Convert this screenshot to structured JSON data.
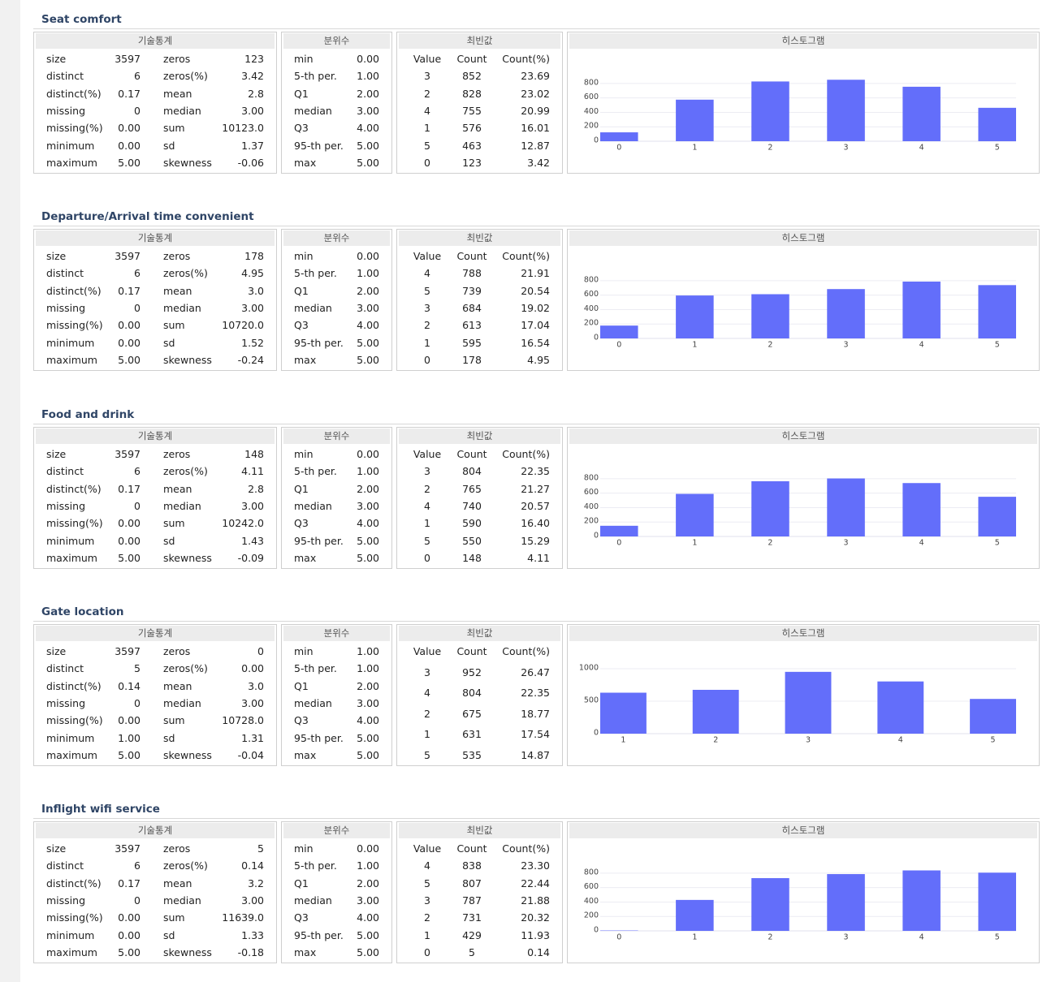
{
  "sections": [
    {
      "title": "Seat comfort",
      "stats": {
        "header": "기술통계",
        "rows": [
          [
            "size",
            "3597",
            "zeros",
            "123"
          ],
          [
            "distinct",
            "6",
            "zeros(%)",
            "3.42"
          ],
          [
            "distinct(%)",
            "0.17",
            "mean",
            "2.8"
          ],
          [
            "missing",
            "0",
            "median",
            "3.00"
          ],
          [
            "missing(%)",
            "0.00",
            "sum",
            "10123.0"
          ],
          [
            "minimum",
            "0.00",
            "sd",
            "1.37"
          ],
          [
            "maximum",
            "5.00",
            "skewness",
            "-0.06"
          ]
        ]
      },
      "quantiles": {
        "header": "분위수",
        "rows": [
          [
            "min",
            "0.00"
          ],
          [
            "5-th per.",
            "1.00"
          ],
          [
            "Q1",
            "2.00"
          ],
          [
            "median",
            "3.00"
          ],
          [
            "Q3",
            "4.00"
          ],
          [
            "95-th per.",
            "5.00"
          ],
          [
            "max",
            "5.00"
          ]
        ]
      },
      "mode": {
        "header": "최빈값",
        "rows": [
          [
            "Value",
            "Count",
            "Count(%)"
          ],
          [
            "3",
            "852",
            "23.69"
          ],
          [
            "2",
            "828",
            "23.02"
          ],
          [
            "4",
            "755",
            "20.99"
          ],
          [
            "1",
            "576",
            "16.01"
          ],
          [
            "5",
            "463",
            "12.87"
          ],
          [
            "0",
            "123",
            "3.42"
          ]
        ]
      },
      "histogram": {
        "title": "히스토그램",
        "chart_data": {
          "type": "bar",
          "categories": [
            "0",
            "1",
            "2",
            "3",
            "4",
            "5"
          ],
          "values": [
            123,
            576,
            828,
            852,
            755,
            463
          ],
          "color": "#636efa",
          "ylim": [
            0,
            900
          ],
          "yticks": [
            0,
            200,
            400,
            600,
            800
          ],
          "grid": true
        }
      }
    },
    {
      "title": "Departure/Arrival time convenient",
      "stats": {
        "header": "기술통계",
        "rows": [
          [
            "size",
            "3597",
            "zeros",
            "178"
          ],
          [
            "distinct",
            "6",
            "zeros(%)",
            "4.95"
          ],
          [
            "distinct(%)",
            "0.17",
            "mean",
            "3.0"
          ],
          [
            "missing",
            "0",
            "median",
            "3.00"
          ],
          [
            "missing(%)",
            "0.00",
            "sum",
            "10720.0"
          ],
          [
            "minimum",
            "0.00",
            "sd",
            "1.52"
          ],
          [
            "maximum",
            "5.00",
            "skewness",
            "-0.24"
          ]
        ]
      },
      "quantiles": {
        "header": "분위수",
        "rows": [
          [
            "min",
            "0.00"
          ],
          [
            "5-th per.",
            "1.00"
          ],
          [
            "Q1",
            "2.00"
          ],
          [
            "median",
            "3.00"
          ],
          [
            "Q3",
            "4.00"
          ],
          [
            "95-th per.",
            "5.00"
          ],
          [
            "max",
            "5.00"
          ]
        ]
      },
      "mode": {
        "header": "최빈값",
        "rows": [
          [
            "Value",
            "Count",
            "Count(%)"
          ],
          [
            "4",
            "788",
            "21.91"
          ],
          [
            "5",
            "739",
            "20.54"
          ],
          [
            "3",
            "684",
            "19.02"
          ],
          [
            "2",
            "613",
            "17.04"
          ],
          [
            "1",
            "595",
            "16.54"
          ],
          [
            "0",
            "178",
            "4.95"
          ]
        ]
      },
      "histogram": {
        "title": "히스토그램",
        "chart_data": {
          "type": "bar",
          "categories": [
            "0",
            "1",
            "2",
            "3",
            "4",
            "5"
          ],
          "values": [
            178,
            595,
            613,
            684,
            788,
            739
          ],
          "color": "#636efa",
          "ylim": [
            0,
            900
          ],
          "yticks": [
            0,
            200,
            400,
            600,
            800
          ],
          "grid": true
        }
      }
    },
    {
      "title": "Food and drink",
      "stats": {
        "header": "기술통계",
        "rows": [
          [
            "size",
            "3597",
            "zeros",
            "148"
          ],
          [
            "distinct",
            "6",
            "zeros(%)",
            "4.11"
          ],
          [
            "distinct(%)",
            "0.17",
            "mean",
            "2.8"
          ],
          [
            "missing",
            "0",
            "median",
            "3.00"
          ],
          [
            "missing(%)",
            "0.00",
            "sum",
            "10242.0"
          ],
          [
            "minimum",
            "0.00",
            "sd",
            "1.43"
          ],
          [
            "maximum",
            "5.00",
            "skewness",
            "-0.09"
          ]
        ]
      },
      "quantiles": {
        "header": "분위수",
        "rows": [
          [
            "min",
            "0.00"
          ],
          [
            "5-th per.",
            "1.00"
          ],
          [
            "Q1",
            "2.00"
          ],
          [
            "median",
            "3.00"
          ],
          [
            "Q3",
            "4.00"
          ],
          [
            "95-th per.",
            "5.00"
          ],
          [
            "max",
            "5.00"
          ]
        ]
      },
      "mode": {
        "header": "최빈값",
        "rows": [
          [
            "Value",
            "Count",
            "Count(%)"
          ],
          [
            "3",
            "804",
            "22.35"
          ],
          [
            "2",
            "765",
            "21.27"
          ],
          [
            "4",
            "740",
            "20.57"
          ],
          [
            "1",
            "590",
            "16.40"
          ],
          [
            "5",
            "550",
            "15.29"
          ],
          [
            "0",
            "148",
            "4.11"
          ]
        ]
      },
      "histogram": {
        "title": "히스토그램",
        "chart_data": {
          "type": "bar",
          "categories": [
            "0",
            "1",
            "2",
            "3",
            "4",
            "5"
          ],
          "values": [
            148,
            590,
            765,
            804,
            740,
            550
          ],
          "color": "#636efa",
          "ylim": [
            0,
            900
          ],
          "yticks": [
            0,
            200,
            400,
            600,
            800
          ],
          "grid": true
        }
      }
    },
    {
      "title": "Gate location",
      "stats": {
        "header": "기술통계",
        "rows": [
          [
            "size",
            "3597",
            "zeros",
            "0"
          ],
          [
            "distinct",
            "5",
            "zeros(%)",
            "0.00"
          ],
          [
            "distinct(%)",
            "0.14",
            "mean",
            "3.0"
          ],
          [
            "missing",
            "0",
            "median",
            "3.00"
          ],
          [
            "missing(%)",
            "0.00",
            "sum",
            "10728.0"
          ],
          [
            "minimum",
            "1.00",
            "sd",
            "1.31"
          ],
          [
            "maximum",
            "5.00",
            "skewness",
            "-0.04"
          ]
        ]
      },
      "quantiles": {
        "header": "분위수",
        "rows": [
          [
            "min",
            "1.00"
          ],
          [
            "5-th per.",
            "1.00"
          ],
          [
            "Q1",
            "2.00"
          ],
          [
            "median",
            "3.00"
          ],
          [
            "Q3",
            "4.00"
          ],
          [
            "95-th per.",
            "5.00"
          ],
          [
            "max",
            "5.00"
          ]
        ]
      },
      "mode": {
        "header": "최빈값",
        "rows": [
          [
            "Value",
            "Count",
            "Count(%)"
          ],
          [
            "3",
            "952",
            "26.47"
          ],
          [
            "4",
            "804",
            "22.35"
          ],
          [
            "2",
            "675",
            "18.77"
          ],
          [
            "1",
            "631",
            "17.54"
          ],
          [
            "5",
            "535",
            "14.87"
          ]
        ]
      },
      "histogram": {
        "title": "히스토그램",
        "chart_data": {
          "type": "bar",
          "categories": [
            "1",
            "2",
            "3",
            "4",
            "5"
          ],
          "values": [
            631,
            675,
            952,
            804,
            535
          ],
          "color": "#636efa",
          "ylim": [
            0,
            1000
          ],
          "yticks": [
            0,
            500,
            1000
          ],
          "grid": true
        }
      }
    },
    {
      "title": "Inflight wifi service",
      "stats": {
        "header": "기술통계",
        "rows": [
          [
            "size",
            "3597",
            "zeros",
            "5"
          ],
          [
            "distinct",
            "6",
            "zeros(%)",
            "0.14"
          ],
          [
            "distinct(%)",
            "0.17",
            "mean",
            "3.2"
          ],
          [
            "missing",
            "0",
            "median",
            "3.00"
          ],
          [
            "missing(%)",
            "0.00",
            "sum",
            "11639.0"
          ],
          [
            "minimum",
            "0.00",
            "sd",
            "1.33"
          ],
          [
            "maximum",
            "5.00",
            "skewness",
            "-0.18"
          ]
        ]
      },
      "quantiles": {
        "header": "분위수",
        "rows": [
          [
            "min",
            "0.00"
          ],
          [
            "5-th per.",
            "1.00"
          ],
          [
            "Q1",
            "2.00"
          ],
          [
            "median",
            "3.00"
          ],
          [
            "Q3",
            "4.00"
          ],
          [
            "95-th per.",
            "5.00"
          ],
          [
            "max",
            "5.00"
          ]
        ]
      },
      "mode": {
        "header": "최빈값",
        "rows": [
          [
            "Value",
            "Count",
            "Count(%)"
          ],
          [
            "4",
            "838",
            "23.30"
          ],
          [
            "5",
            "807",
            "22.44"
          ],
          [
            "3",
            "787",
            "21.88"
          ],
          [
            "2",
            "731",
            "20.32"
          ],
          [
            "1",
            "429",
            "11.93"
          ],
          [
            "0",
            "5",
            "0.14"
          ]
        ]
      },
      "histogram": {
        "title": "히스토그램",
        "chart_data": {
          "type": "bar",
          "categories": [
            "0",
            "1",
            "2",
            "3",
            "4",
            "5"
          ],
          "values": [
            5,
            429,
            731,
            787,
            838,
            807
          ],
          "color": "#636efa",
          "ylim": [
            0,
            900
          ],
          "yticks": [
            0,
            200,
            400,
            600,
            800
          ],
          "grid": true
        }
      }
    }
  ]
}
